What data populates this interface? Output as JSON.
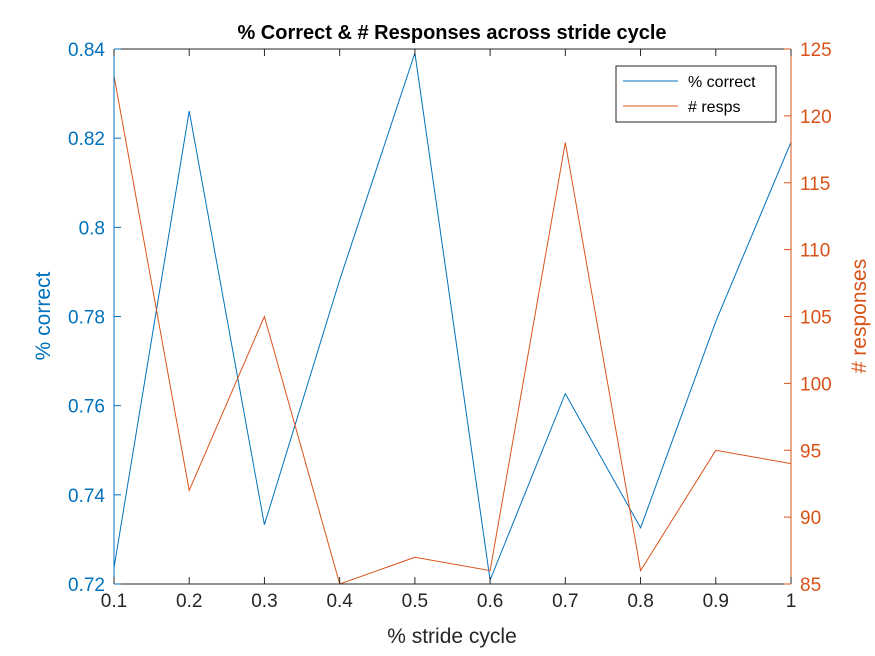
{
  "colors": {
    "left": "#0072BD",
    "right": "#D95319",
    "frame": "#262626"
  },
  "chart_data": {
    "type": "line",
    "title": "% Correct & # Responses across stride cycle",
    "xlabel": "% stride cycle",
    "ylabel_left": "% correct",
    "ylabel_right": "# responses",
    "xlim": [
      0.1,
      1
    ],
    "ylim_left": [
      0.72,
      0.84
    ],
    "ylim_right": [
      85,
      125
    ],
    "x_ticks": [
      "0.1",
      "0.2",
      "0.3",
      "0.4",
      "0.5",
      "0.6",
      "0.7",
      "0.8",
      "0.9",
      "1"
    ],
    "y_left_ticks": [
      "0.72",
      "0.74",
      "0.76",
      "0.78",
      "0.8",
      "0.82",
      "0.84"
    ],
    "y_right_ticks": [
      "85",
      "90",
      "95",
      "100",
      "105",
      "110",
      "115",
      "120",
      "125"
    ],
    "x": [
      0.1,
      0.2,
      0.3,
      0.4,
      0.5,
      0.6,
      0.7,
      0.8,
      0.9,
      1.0
    ],
    "series": [
      {
        "name": "% correct",
        "axis": "left",
        "values": [
          0.7236,
          0.8261,
          0.7333,
          0.7882,
          0.8391,
          0.7209,
          0.7627,
          0.7326,
          0.7789,
          0.8191
        ]
      },
      {
        "name": "# resps",
        "axis": "right",
        "values": [
          123,
          92,
          105,
          85,
          87,
          86,
          118,
          86,
          95,
          94
        ]
      }
    ],
    "legend": "top-right",
    "grid": false
  }
}
